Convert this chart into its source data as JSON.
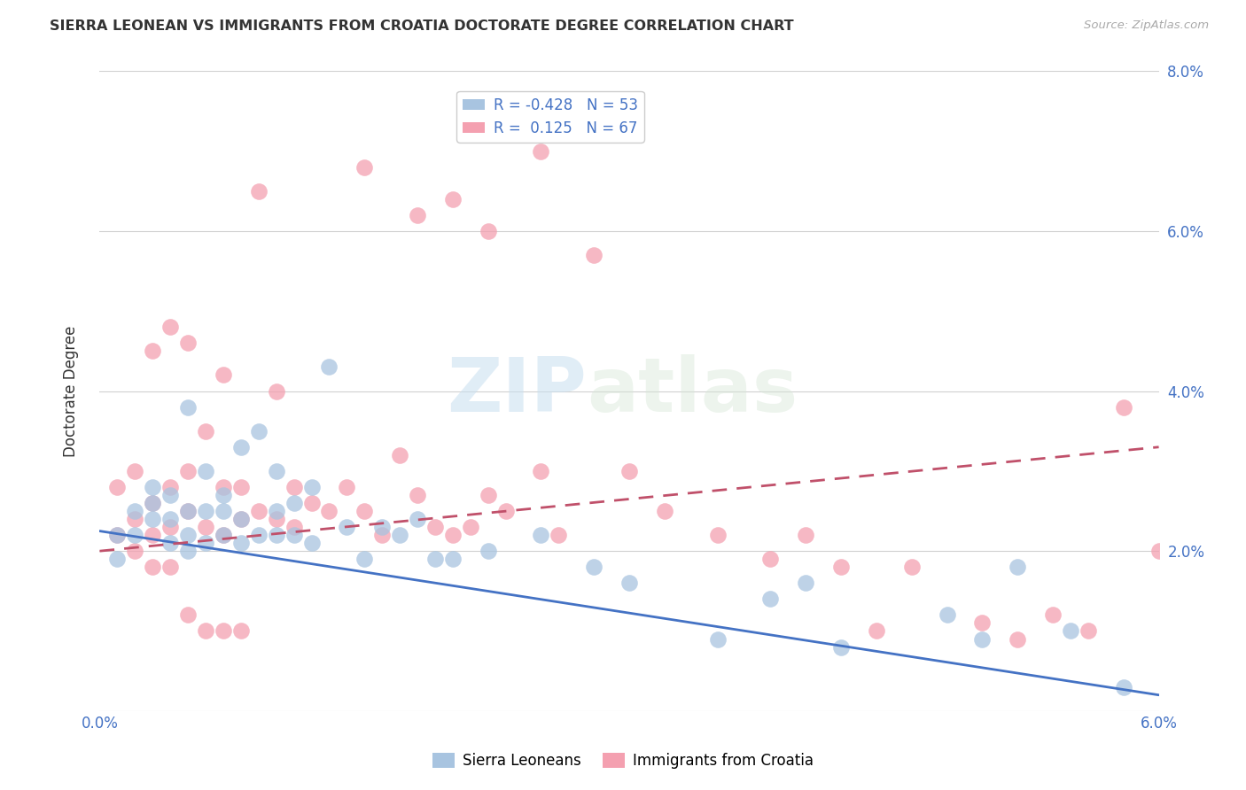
{
  "title": "SIERRA LEONEAN VS IMMIGRANTS FROM CROATIA DOCTORATE DEGREE CORRELATION CHART",
  "source": "Source: ZipAtlas.com",
  "ylabel": "Doctorate Degree",
  "xlim": [
    0.0,
    0.06
  ],
  "ylim": [
    0.0,
    0.08
  ],
  "xticks": [
    0.0,
    0.06
  ],
  "xtick_labels": [
    "0.0%",
    "6.0%"
  ],
  "yticks": [
    0.0,
    0.02,
    0.04,
    0.06,
    0.08
  ],
  "ytick_labels_right": [
    "",
    "2.0%",
    "4.0%",
    "6.0%",
    "8.0%"
  ],
  "legend_entries": [
    {
      "label": "R = -0.428   N = 53",
      "color": "#a8c4e0"
    },
    {
      "label": "R =  0.125   N = 67",
      "color": "#f4a0b0"
    }
  ],
  "series1_label": "Sierra Leoneans",
  "series2_label": "Immigrants from Croatia",
  "series1_color": "#a8c4e0",
  "series2_color": "#f4a0b0",
  "series1_line_color": "#4472c4",
  "series2_line_color": "#c0506a",
  "watermark1": "ZIP",
  "watermark2": "atlas",
  "title_color": "#333333",
  "axis_color": "#4472c4",
  "background_color": "#ffffff",
  "series1_x": [
    0.001,
    0.001,
    0.002,
    0.002,
    0.003,
    0.003,
    0.003,
    0.004,
    0.004,
    0.004,
    0.005,
    0.005,
    0.005,
    0.005,
    0.006,
    0.006,
    0.006,
    0.007,
    0.007,
    0.007,
    0.008,
    0.008,
    0.008,
    0.009,
    0.009,
    0.01,
    0.01,
    0.01,
    0.011,
    0.011,
    0.012,
    0.012,
    0.013,
    0.014,
    0.015,
    0.016,
    0.017,
    0.018,
    0.019,
    0.02,
    0.022,
    0.025,
    0.028,
    0.03,
    0.035,
    0.038,
    0.04,
    0.042,
    0.048,
    0.05,
    0.052,
    0.055,
    0.058
  ],
  "series1_y": [
    0.019,
    0.022,
    0.025,
    0.022,
    0.024,
    0.026,
    0.028,
    0.021,
    0.024,
    0.027,
    0.02,
    0.022,
    0.025,
    0.038,
    0.021,
    0.025,
    0.03,
    0.022,
    0.025,
    0.027,
    0.021,
    0.024,
    0.033,
    0.022,
    0.035,
    0.022,
    0.025,
    0.03,
    0.022,
    0.026,
    0.021,
    0.028,
    0.043,
    0.023,
    0.019,
    0.023,
    0.022,
    0.024,
    0.019,
    0.019,
    0.02,
    0.022,
    0.018,
    0.016,
    0.009,
    0.014,
    0.016,
    0.008,
    0.012,
    0.009,
    0.018,
    0.01,
    0.003
  ],
  "series2_x": [
    0.001,
    0.001,
    0.002,
    0.002,
    0.003,
    0.003,
    0.003,
    0.004,
    0.004,
    0.004,
    0.005,
    0.005,
    0.005,
    0.006,
    0.006,
    0.007,
    0.007,
    0.007,
    0.008,
    0.008,
    0.009,
    0.009,
    0.01,
    0.01,
    0.011,
    0.011,
    0.012,
    0.013,
    0.014,
    0.015,
    0.016,
    0.017,
    0.018,
    0.019,
    0.02,
    0.021,
    0.022,
    0.023,
    0.025,
    0.026,
    0.015,
    0.018,
    0.02,
    0.022,
    0.025,
    0.028,
    0.03,
    0.032,
    0.035,
    0.038,
    0.04,
    0.042,
    0.044,
    0.046,
    0.05,
    0.052,
    0.054,
    0.056,
    0.058,
    0.06,
    0.002,
    0.003,
    0.004,
    0.005,
    0.006,
    0.007,
    0.008
  ],
  "series2_y": [
    0.022,
    0.028,
    0.024,
    0.03,
    0.022,
    0.026,
    0.045,
    0.023,
    0.028,
    0.048,
    0.025,
    0.03,
    0.046,
    0.023,
    0.035,
    0.022,
    0.028,
    0.042,
    0.024,
    0.028,
    0.025,
    0.065,
    0.024,
    0.04,
    0.023,
    0.028,
    0.026,
    0.025,
    0.028,
    0.025,
    0.022,
    0.032,
    0.027,
    0.023,
    0.022,
    0.023,
    0.027,
    0.025,
    0.03,
    0.022,
    0.068,
    0.062,
    0.064,
    0.06,
    0.07,
    0.057,
    0.03,
    0.025,
    0.022,
    0.019,
    0.022,
    0.018,
    0.01,
    0.018,
    0.011,
    0.009,
    0.012,
    0.01,
    0.038,
    0.02,
    0.02,
    0.018,
    0.018,
    0.012,
    0.01,
    0.01,
    0.01
  ],
  "s1_line_x": [
    0.0,
    0.06
  ],
  "s1_line_y": [
    0.0225,
    0.002
  ],
  "s2_line_x": [
    0.0,
    0.06
  ],
  "s2_line_y": [
    0.02,
    0.033
  ]
}
